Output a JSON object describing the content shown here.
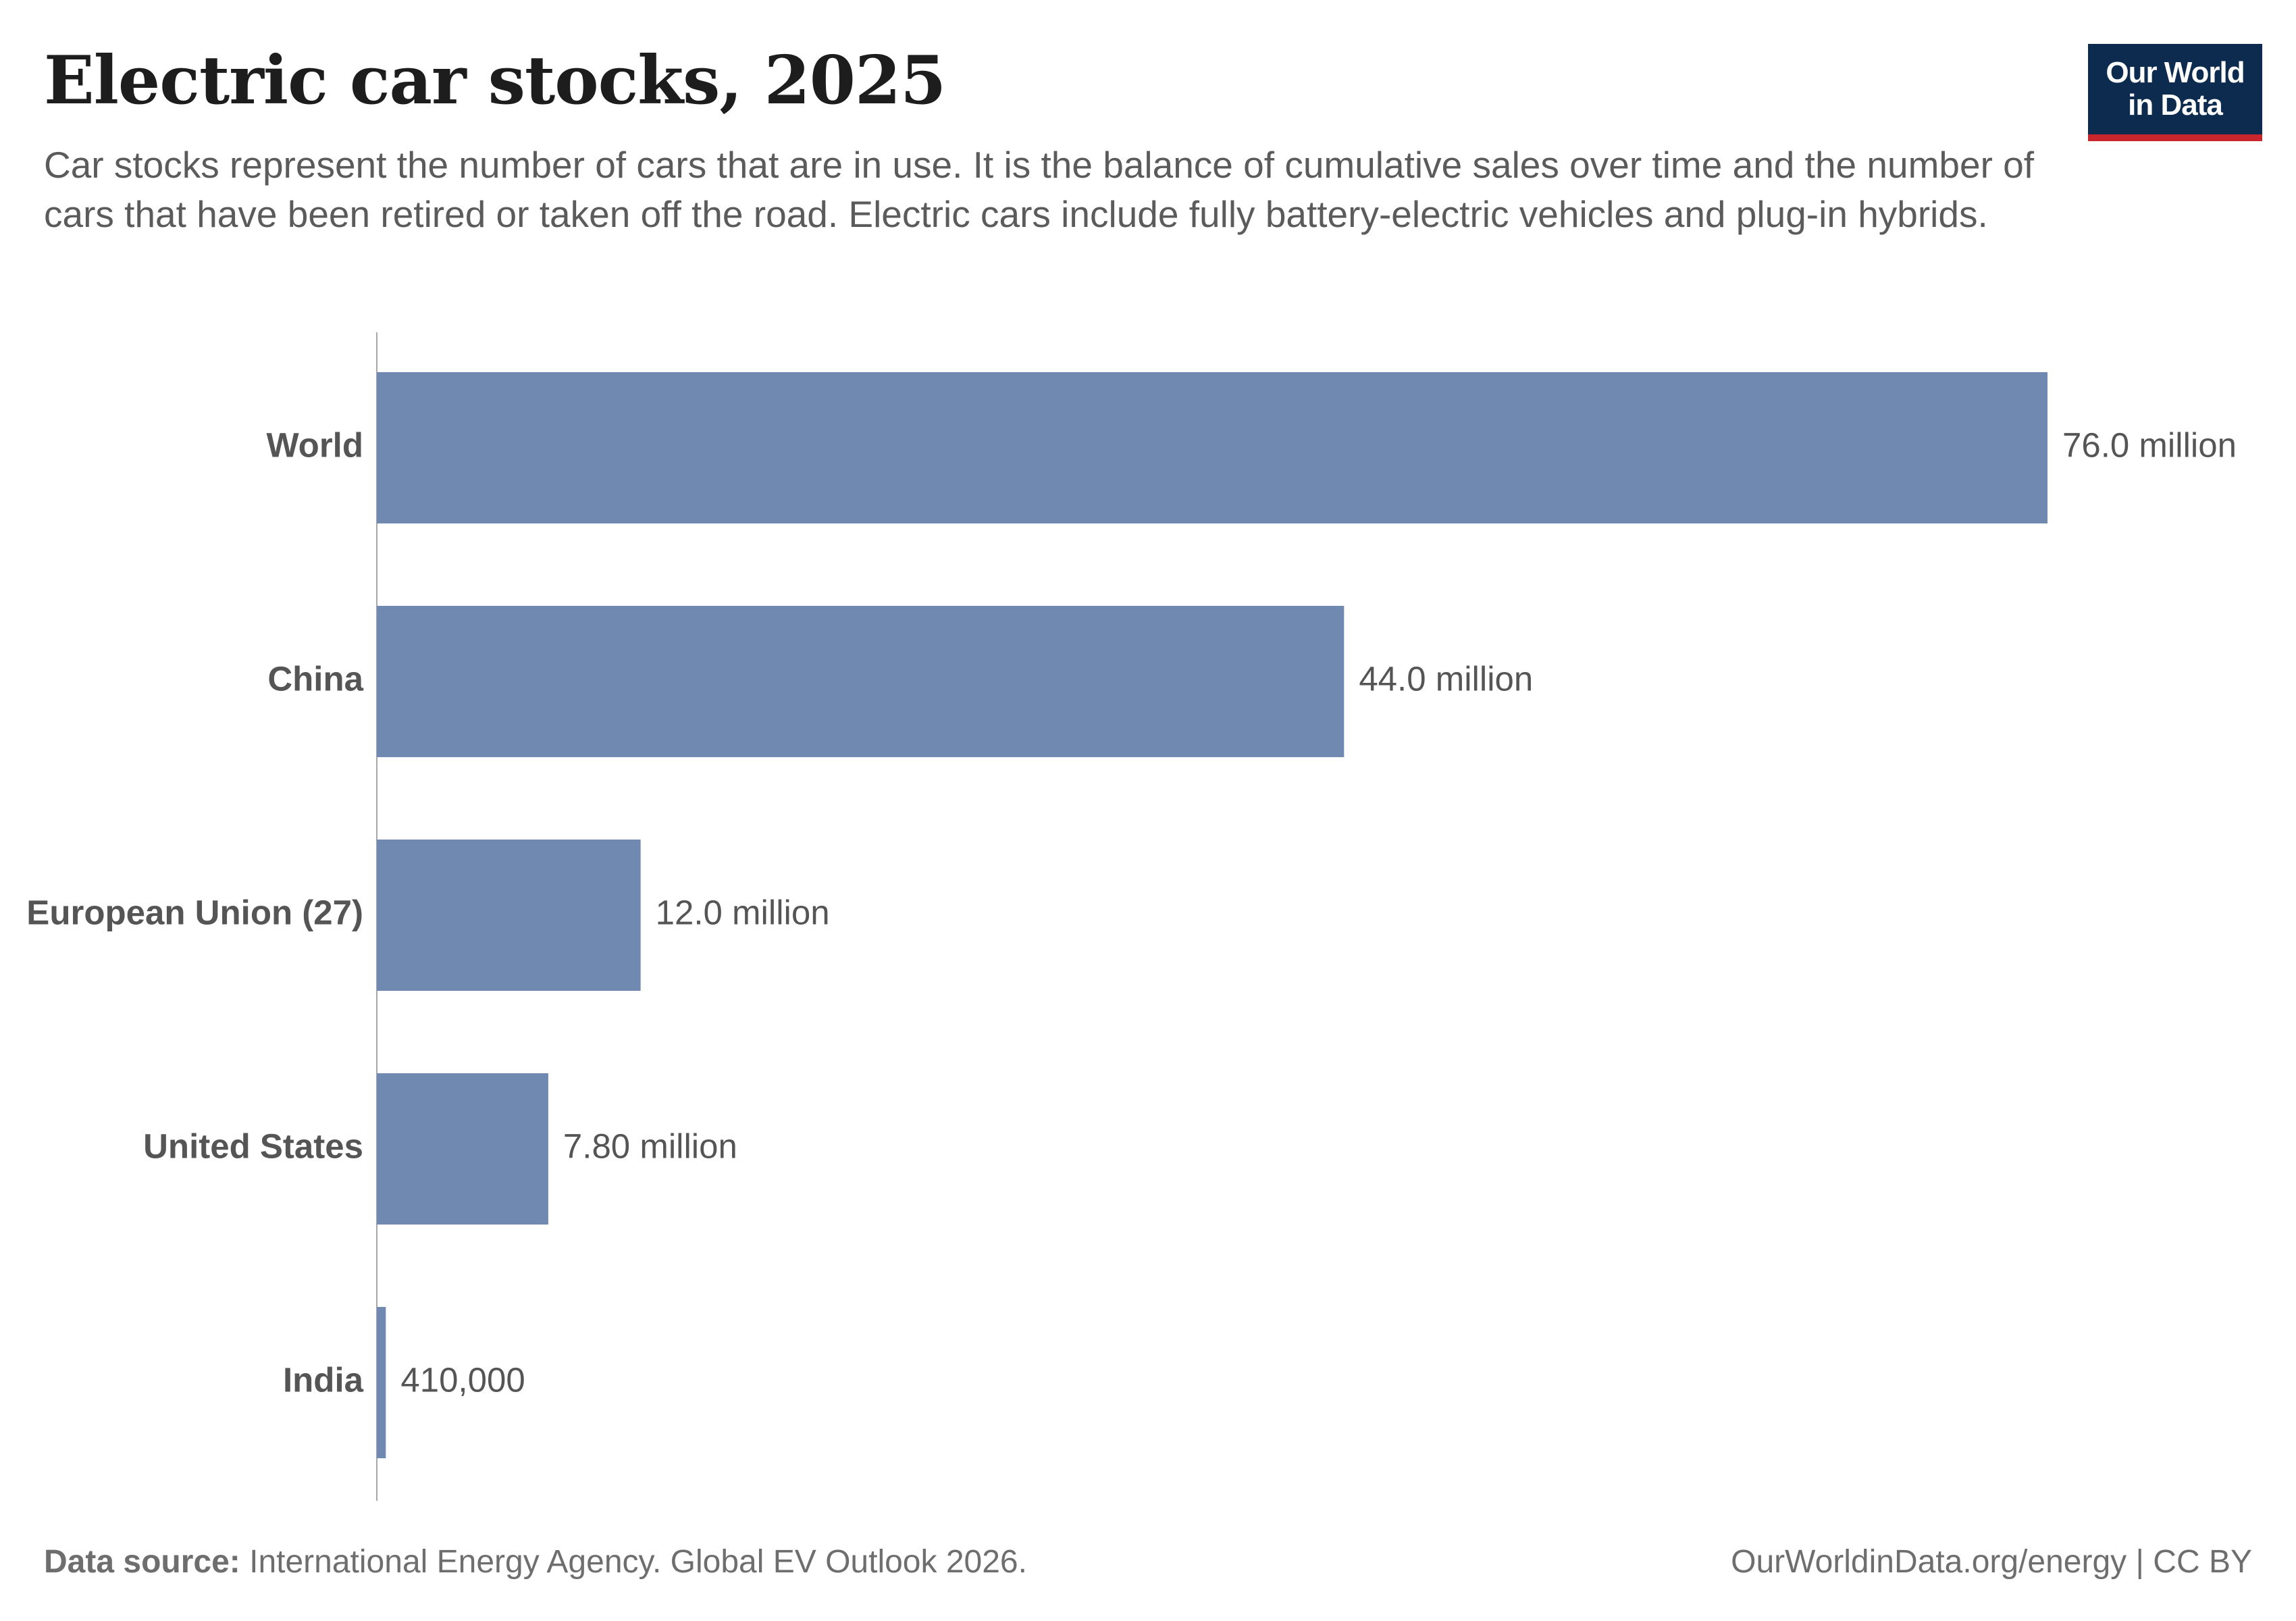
{
  "header": {
    "title": "Electric car stocks, 2025",
    "subtitle": "Car stocks represent the number of cars that are in use. It is the balance of cumulative sales over time and the number of cars that have been retired or taken off the road. Electric cars include fully battery-electric vehicles and plug-in hybrids."
  },
  "logo": {
    "line1": "Our World",
    "line2": "in Data",
    "bg_color": "#0d2a4f",
    "accent_color": "#c8262c"
  },
  "footer": {
    "source_label": "Data source:",
    "source_text": "International Energy Agency. Global EV Outlook 2026.",
    "credit": "OurWorldinData.org/energy | CC BY"
  },
  "chart_data": {
    "type": "bar",
    "orientation": "horizontal",
    "categories": [
      "World",
      "China",
      "European Union (27)",
      "United States",
      "India"
    ],
    "values": [
      76000000,
      44000000,
      12000000,
      7800000,
      410000
    ],
    "value_labels": [
      "76.0 million",
      "44.0 million",
      "12.0 million",
      "7.80 million",
      "410,000"
    ],
    "bar_color": "#6f89b0",
    "xlim": [
      0,
      76000000
    ],
    "grid": false
  }
}
